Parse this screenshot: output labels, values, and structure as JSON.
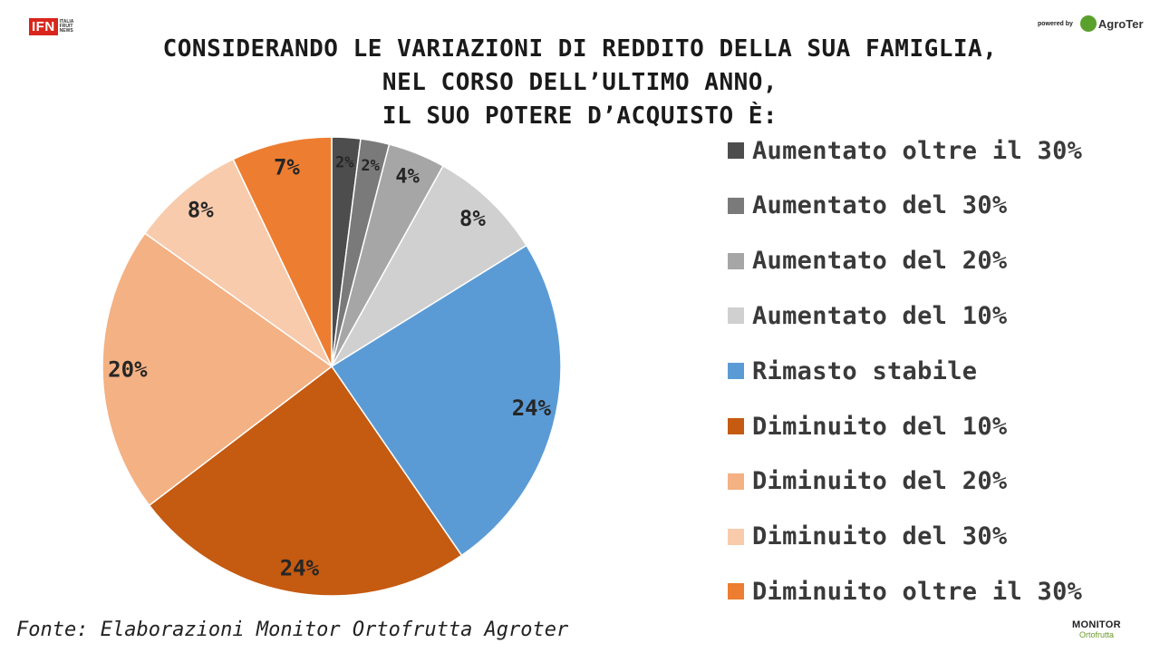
{
  "header": {
    "title_lines": [
      "CONSIDERANDO LE VARIAZIONI DI REDDITO DELLA SUA FAMIGLIA,",
      "NEL CORSO DELL’ULTIMO ANNO,",
      "IL SUO POTERE D’ACQUISTO È:"
    ]
  },
  "logos": {
    "ifn_text": "IFN",
    "ifn_sub": [
      "ITALIA",
      "FRUIT",
      "NEWS"
    ],
    "powered_by": "powered by",
    "agroter": "AgroTer",
    "monitor_top": "MONITOR",
    "monitor_bottom": "Ortofrutta"
  },
  "footer": {
    "source": "Fonte: Elaborazioni Monitor Ortofrutta Agroter"
  },
  "chart_data": {
    "type": "pie",
    "title": "CONSIDERANDO LE VARIAZIONI DI REDDITO DELLA SUA FAMIGLIA, NEL CORSO DELL’ULTIMO ANNO, IL SUO POTERE D’ACQUISTO È:",
    "legend_position": "right",
    "start_angle": "top, clockwise",
    "categories": [
      "Aumentato oltre il 30%",
      "Aumentato del 30%",
      "Aumentato del 20%",
      "Aumentato del 10%",
      "Rimasto stabile",
      "Diminuito del 10%",
      "Diminuito del 20%",
      "Diminuito del 30%",
      "Diminuito oltre il 30%"
    ],
    "values": [
      2,
      2,
      4,
      8,
      24,
      24,
      20,
      8,
      7
    ],
    "labels": [
      "2%",
      "2%",
      "4%",
      "8%",
      "24%",
      "24%",
      "20%",
      "8%",
      "7%"
    ],
    "colors": [
      "#4d4d4d",
      "#7a7a7a",
      "#a6a6a6",
      "#d0d0d0",
      "#5b9bd5",
      "#c55a11",
      "#f4b183",
      "#f8cbad",
      "#ed7d31"
    ]
  }
}
